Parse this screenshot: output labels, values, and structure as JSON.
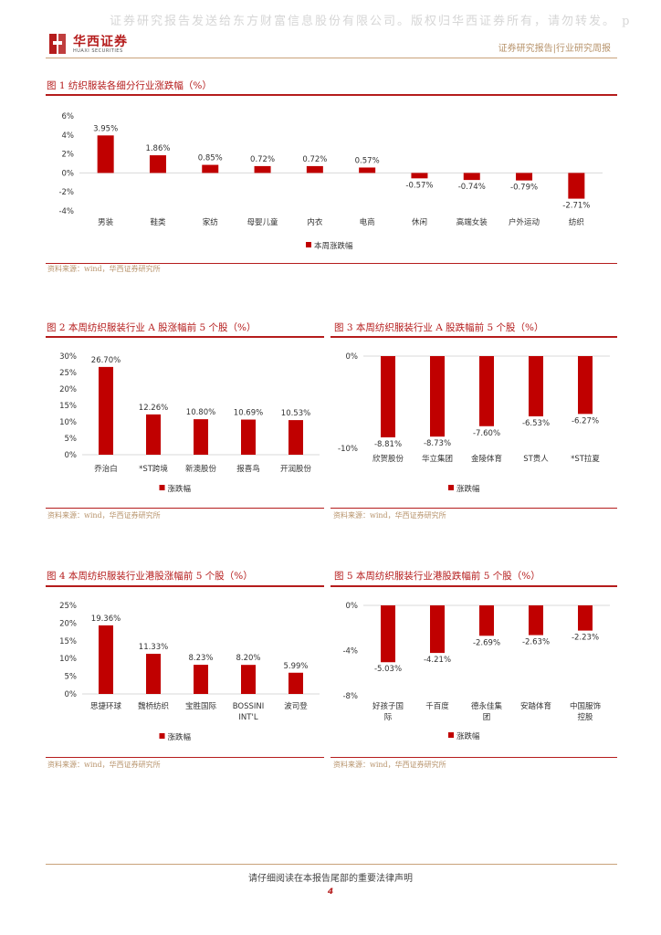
{
  "header": {
    "watermark": "证券研究报告发送给东方财富信息股份有限公司。版权归华西证券所有，请勿转发。 p",
    "logo_cn": "华西证券",
    "logo_en": "HUAXI SECURITIES",
    "report_type": "证券研究报告|行业研究周报"
  },
  "figures": [
    {
      "title": "图 1 纺织服装各细分行业涨跌幅（%）",
      "source": "资料来源：wind，华西证券研究所",
      "legend": "本周涨跌幅"
    },
    {
      "title": "图 2 本周纺织服装行业 A 股涨幅前 5 个股（%）",
      "source": "资料来源：wind，华西证券研究所",
      "legend": "涨跌幅"
    },
    {
      "title": "图 3 本周纺织服装行业 A 股跌幅前 5 个股（%）",
      "source": "资料来源：wind，华西证券研究所",
      "legend": "涨跌幅"
    },
    {
      "title": "图 4 本周纺织服装行业港股涨幅前 5 个股（%）",
      "source": "资料来源：wind，华西证券研究所",
      "legend": "涨跌幅"
    },
    {
      "title": "图 5 本周纺织服装行业港股跌幅前 5 个股（%）",
      "source": "资料来源：wind，华西证券研究所",
      "legend": "涨跌幅"
    }
  ],
  "chart_data": [
    {
      "type": "bar",
      "categories": [
        "男装",
        "鞋类",
        "家纺",
        "母婴儿童",
        "内衣",
        "电商",
        "休闲",
        "高端女装",
        "户外运动",
        "纺织"
      ],
      "values": [
        3.95,
        1.86,
        0.85,
        0.72,
        0.72,
        0.57,
        -0.57,
        -0.74,
        -0.79,
        -2.71
      ],
      "labels": [
        "3.95%",
        "1.86%",
        "0.85%",
        "0.72%",
        "0.72%",
        "0.57%",
        "-0.57%",
        "-0.74%",
        "-0.79%",
        "-2.71%"
      ],
      "series": [
        {
          "name": "本周涨跌幅",
          "values": [
            3.95,
            1.86,
            0.85,
            0.72,
            0.72,
            0.57,
            -0.57,
            -0.74,
            -0.79,
            -2.71
          ]
        }
      ],
      "yticks": [
        "6%",
        "4%",
        "2%",
        "0%",
        "-2%",
        "-4%"
      ],
      "ylim": [
        -4,
        6
      ],
      "color": "#c00000",
      "legend_position": "bottom"
    },
    {
      "type": "bar",
      "categories": [
        "乔治白",
        "*ST跨境",
        "新澳股份",
        "报喜鸟",
        "开润股份"
      ],
      "values": [
        26.7,
        12.26,
        10.8,
        10.69,
        10.53
      ],
      "labels": [
        "26.70%",
        "12.26%",
        "10.80%",
        "10.69%",
        "10.53%"
      ],
      "series": [
        {
          "name": "涨跌幅",
          "values": [
            26.7,
            12.26,
            10.8,
            10.69,
            10.53
          ]
        }
      ],
      "yticks": [
        "30%",
        "25%",
        "20%",
        "15%",
        "10%",
        "5%",
        "0%"
      ],
      "ylim": [
        0,
        30
      ],
      "color": "#c00000",
      "legend_position": "bottom"
    },
    {
      "type": "bar",
      "categories": [
        "欣贺股份",
        "华立集团",
        "金陵体育",
        "ST贵人",
        "*ST拉夏"
      ],
      "values": [
        -8.81,
        -8.73,
        -7.6,
        -6.53,
        -6.27
      ],
      "labels": [
        "-8.81%",
        "-8.73%",
        "-7.60%",
        "-6.53%",
        "-6.27%"
      ],
      "series": [
        {
          "name": "涨跌幅",
          "values": [
            -8.81,
            -8.73,
            -7.6,
            -6.53,
            -6.27
          ]
        }
      ],
      "yticks": [
        "0%",
        "-10%"
      ],
      "ylim": [
        -10,
        0
      ],
      "color": "#c00000",
      "legend_position": "bottom"
    },
    {
      "type": "bar",
      "categories": [
        "思捷环球",
        "魏桥纺织",
        "宝胜国际",
        "BOSSINI INT'L",
        "波司登"
      ],
      "values": [
        19.36,
        11.33,
        8.23,
        8.2,
        5.99
      ],
      "labels": [
        "19.36%",
        "11.33%",
        "8.23%",
        "8.20%",
        "5.99%"
      ],
      "series": [
        {
          "name": "涨跌幅",
          "values": [
            19.36,
            11.33,
            8.23,
            8.2,
            5.99
          ]
        }
      ],
      "yticks": [
        "25%",
        "20%",
        "15%",
        "10%",
        "5%",
        "0%"
      ],
      "ylim": [
        0,
        25
      ],
      "color": "#c00000",
      "legend_position": "bottom"
    },
    {
      "type": "bar",
      "categories": [
        "好孩子国际",
        "千百度",
        "德永佳集团",
        "安踏体育",
        "中国服饰控股"
      ],
      "values": [
        -5.03,
        -4.21,
        -2.69,
        -2.63,
        -2.23
      ],
      "labels": [
        "-5.03%",
        "-4.21%",
        "-2.69%",
        "-2.63%",
        "-2.23%"
      ],
      "series": [
        {
          "name": "涨跌幅",
          "values": [
            -5.03,
            -4.21,
            -2.69,
            -2.63,
            -2.23
          ]
        }
      ],
      "yticks": [
        "0%",
        "-4%",
        "-8%"
      ],
      "ylim": [
        -8,
        0
      ],
      "color": "#c00000",
      "legend_position": "bottom"
    }
  ],
  "footer": {
    "disclaimer": "请仔细阅读在本报告尾部的重要法律声明",
    "page_number": "4"
  }
}
